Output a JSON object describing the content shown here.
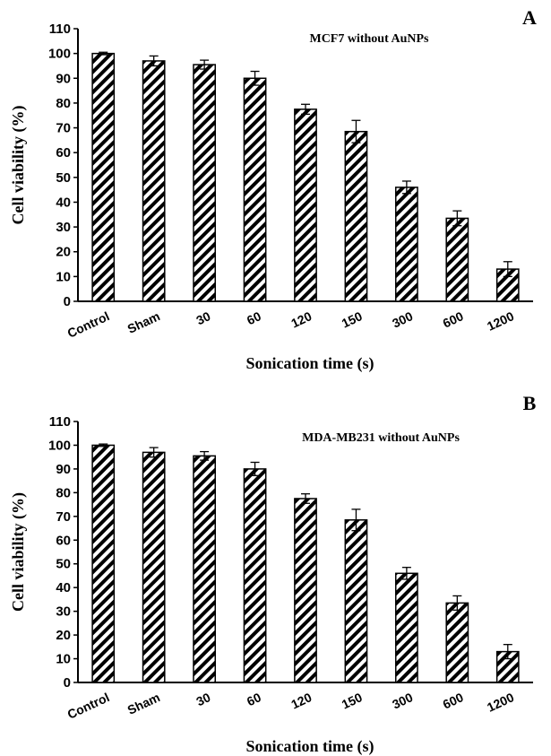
{
  "chart_data": [
    {
      "type": "bar",
      "panel_label": "A",
      "title": "MCF7 without AuNPs",
      "xlabel": "Sonication time (s)",
      "ylabel": "Cell viability (%)",
      "ylim": [
        0,
        110
      ],
      "yticks": [
        0,
        10,
        20,
        30,
        40,
        50,
        60,
        70,
        80,
        90,
        100,
        110
      ],
      "categories": [
        "Control",
        "Sham",
        "30",
        "60",
        "120",
        "150",
        "300",
        "600",
        "1200"
      ],
      "values": [
        100,
        97,
        95.5,
        90,
        77.5,
        68.5,
        46,
        33.5,
        13
      ],
      "errors": [
        0.5,
        2,
        1.8,
        2.8,
        2,
        4.5,
        2.5,
        3,
        3
      ],
      "bar_fill": "hatched-diagonal",
      "grid": false
    },
    {
      "type": "bar",
      "panel_label": "B",
      "title": "MDA-MB231 without AuNPs",
      "xlabel": "Sonication time (s)",
      "ylabel": "Cell viability (%)",
      "ylim": [
        0,
        110
      ],
      "yticks": [
        0,
        10,
        20,
        30,
        40,
        50,
        60,
        70,
        80,
        90,
        100,
        110
      ],
      "categories": [
        "Control",
        "Sham",
        "30",
        "60",
        "120",
        "150",
        "300",
        "600",
        "1200"
      ],
      "values": [
        100,
        97,
        95.5,
        90,
        77.5,
        68.5,
        46,
        33.5,
        13
      ],
      "errors": [
        0.5,
        2,
        1.8,
        2.8,
        2,
        4.5,
        2.5,
        3,
        3
      ],
      "bar_fill": "hatched-diagonal",
      "grid": false
    }
  ]
}
